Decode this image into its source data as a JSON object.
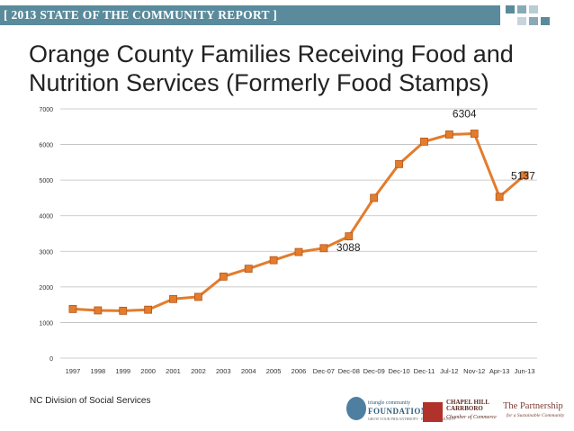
{
  "banner": {
    "text": "[ 2013 STATE OF THE COMMUNITY REPORT ]",
    "bar_color": "#5a8b9c",
    "squares": [
      "#5a8b9c",
      "#8aa9b6",
      "#b9cbd3",
      "#c6d5db",
      "#8aa9b6",
      "#5a8b9c"
    ]
  },
  "title_lines": [
    "Orange County Families Receiving Food and",
    "Nutrition Services (Formerly Food Stamps)"
  ],
  "source": "NC Division of Social Services",
  "logos": {
    "triangle": {
      "line1": "triangle community",
      "line2": "FOUNDATION",
      "line3": "GROW YOUR PHILANTHROPY · BUILD COMMUNITY"
    },
    "chapel_hill": {
      "line1": "CHAPEL HILL",
      "line2": "CARRBORO",
      "line3": "Chamber of Commerce"
    },
    "partnership": {
      "line1": "The Partnership",
      "line2": "for a Sustainable Community"
    }
  },
  "chart_data": {
    "type": "line",
    "categories": [
      "1997",
      "1998",
      "1999",
      "2000",
      "2001",
      "2002",
      "2003",
      "2004",
      "2005",
      "2006",
      "Dec-07",
      "Dec-08",
      "Dec-09",
      "Dec-10",
      "Dec-11",
      "Jul-12",
      "Nov-12",
      "Apr-13",
      "Jun-13"
    ],
    "values": [
      1380,
      1340,
      1330,
      1360,
      1660,
      1720,
      2290,
      2510,
      2750,
      2980,
      3088,
      3420,
      4500,
      5450,
      6080,
      6280,
      6304,
      4530,
      5137
    ],
    "ylim": [
      0,
      7000
    ],
    "yticks": [
      "0",
      "1000",
      "2000",
      "3000",
      "4000",
      "5000",
      "6000",
      "7000"
    ],
    "grid": true,
    "line_color": "#e37c2c",
    "marker_color": "#e37c2c",
    "marker_edge_color": "#b6561a",
    "data_labels": [
      {
        "index": 10,
        "text": "3088"
      },
      {
        "index": 16,
        "text": "6304"
      },
      {
        "index": 18,
        "text": "5137"
      }
    ]
  }
}
